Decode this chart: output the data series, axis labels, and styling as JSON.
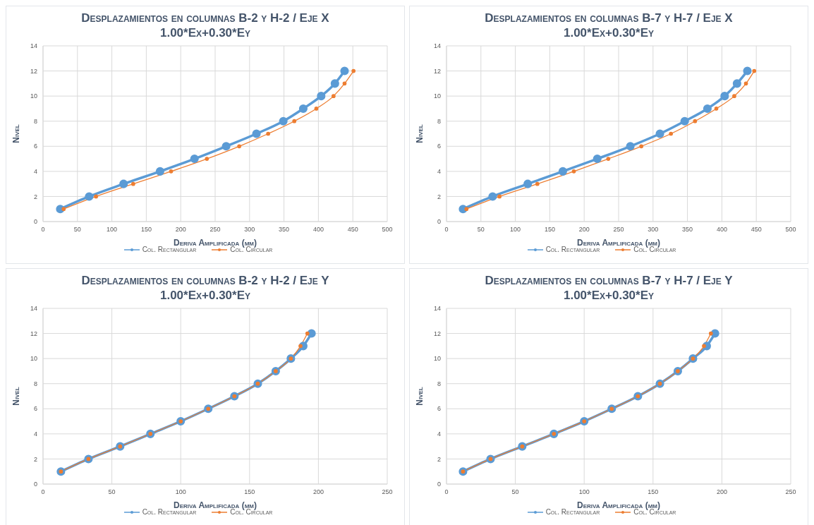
{
  "chart_data": [
    {
      "type": "line",
      "title": "Desplazamientos en columnas B-2 y H-2 / Eje X",
      "subtitle": "1.00*Ex+0.30*Ey",
      "xlabel": "Deriva Amplificada (mm)",
      "ylabel": "Nivel",
      "xlim": [
        0,
        500
      ],
      "xticks": [
        0,
        50,
        100,
        150,
        200,
        250,
        300,
        350,
        400,
        450,
        500
      ],
      "ylim": [
        0,
        14
      ],
      "yticks": [
        0,
        2,
        4,
        6,
        8,
        10,
        12,
        14
      ],
      "grid": true,
      "legend": "bottom",
      "marker": "circle",
      "series": [
        {
          "name": "Col. Rectangular",
          "color": "#5b9bd5",
          "x": [
            25,
            67,
            117,
            170,
            220,
            266,
            310,
            349,
            378,
            404,
            424,
            438
          ],
          "values": [
            1,
            2,
            3,
            4,
            5,
            6,
            7,
            8,
            9,
            10,
            11,
            12
          ]
        },
        {
          "name": "Col. Circular",
          "color": "#ed7d31",
          "x": [
            30,
            77,
            131,
            186,
            238,
            285,
            327,
            365,
            397,
            422,
            438,
            451
          ],
          "values": [
            1,
            2,
            3,
            4,
            5,
            6,
            7,
            8,
            9,
            10,
            11,
            12
          ]
        }
      ]
    },
    {
      "type": "line",
      "title": "Desplazamientos en columnas B-7 y H-7 / Eje X",
      "subtitle": "1.00*Ex+0.30*Ey",
      "xlabel": "Deriva Amplificada (mm)",
      "ylabel": "Nivel",
      "xlim": [
        0,
        500
      ],
      "xticks": [
        0,
        50,
        100,
        150,
        200,
        250,
        300,
        350,
        400,
        450,
        500
      ],
      "ylim": [
        0,
        14
      ],
      "yticks": [
        0,
        2,
        4,
        6,
        8,
        10,
        12,
        14
      ],
      "grid": true,
      "legend": "bottom",
      "marker": "circle",
      "series": [
        {
          "name": "Col. Rectangular",
          "color": "#5b9bd5",
          "x": [
            24,
            67,
            118,
            169,
            219,
            267,
            310,
            346,
            379,
            404,
            422,
            437
          ],
          "values": [
            1,
            2,
            3,
            4,
            5,
            6,
            7,
            8,
            9,
            10,
            11,
            12
          ]
        },
        {
          "name": "Col. Circular",
          "color": "#ed7d31",
          "x": [
            29,
            77,
            132,
            185,
            235,
            283,
            326,
            361,
            392,
            418,
            435,
            447
          ],
          "values": [
            1,
            2,
            3,
            4,
            5,
            6,
            7,
            8,
            9,
            10,
            11,
            12
          ]
        }
      ]
    },
    {
      "type": "line",
      "title": "Desplazamientos en columnas B-2 y H-2 / Eje Y",
      "subtitle": "1.00*Ex+0.30*Ey",
      "xlabel": "Deriva Amplificada (mm)",
      "ylabel": "Nivel",
      "xlim": [
        0,
        250
      ],
      "xticks": [
        0,
        50,
        100,
        150,
        200,
        250
      ],
      "ylim": [
        0,
        14
      ],
      "yticks": [
        0,
        2,
        4,
        6,
        8,
        10,
        12,
        14
      ],
      "grid": true,
      "legend": "bottom",
      "marker": "circle",
      "series": [
        {
          "name": "Col. Rectangular",
          "color": "#5b9bd5",
          "x": [
            13,
            33,
            56,
            78,
            100,
            120,
            139,
            156,
            169,
            180,
            189,
            195
          ],
          "values": [
            1,
            2,
            3,
            4,
            5,
            6,
            7,
            8,
            9,
            10,
            11,
            12
          ]
        },
        {
          "name": "Col. Circular",
          "color": "#ed7d31",
          "x": [
            13,
            33,
            56,
            78,
            100,
            120,
            139,
            156,
            169,
            180,
            187,
            192
          ],
          "values": [
            1,
            2,
            3,
            4,
            5,
            6,
            7,
            8,
            9,
            10,
            11,
            12
          ]
        }
      ]
    },
    {
      "type": "line",
      "title": "Desplazamientos en columnas B-7 y H-7 / Eje Y",
      "subtitle": "1.00*Ex+0.30*Ey",
      "xlabel": "Deriva Amplificada (mm)",
      "ylabel": "Nivel",
      "xlim": [
        0,
        250
      ],
      "xticks": [
        0,
        50,
        100,
        150,
        200,
        250
      ],
      "ylim": [
        0,
        14
      ],
      "yticks": [
        0,
        2,
        4,
        6,
        8,
        10,
        12,
        14
      ],
      "grid": true,
      "legend": "bottom",
      "marker": "circle",
      "series": [
        {
          "name": "Col. Rectangular",
          "color": "#5b9bd5",
          "x": [
            12,
            32,
            55,
            78,
            100,
            120,
            139,
            155,
            168,
            179,
            189,
            195
          ],
          "values": [
            1,
            2,
            3,
            4,
            5,
            6,
            7,
            8,
            9,
            10,
            11,
            12
          ]
        },
        {
          "name": "Col. Circular",
          "color": "#ed7d31",
          "x": [
            12,
            32,
            55,
            78,
            100,
            120,
            139,
            155,
            168,
            179,
            187,
            192
          ],
          "values": [
            1,
            2,
            3,
            4,
            5,
            6,
            7,
            8,
            9,
            10,
            11,
            12
          ]
        }
      ]
    }
  ]
}
